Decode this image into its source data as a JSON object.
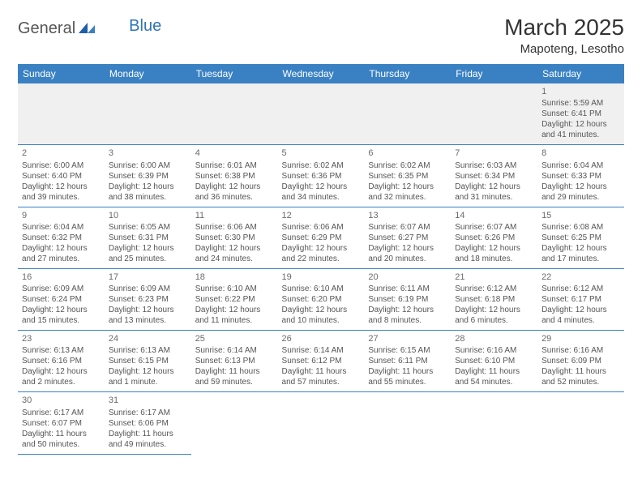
{
  "logo": {
    "general": "General",
    "blue": "Blue"
  },
  "title": "March 2025",
  "location": "Mapoteng, Lesotho",
  "colors": {
    "header_bg": "#3a81c3",
    "header_text": "#ffffff",
    "border": "#3a81c3",
    "text": "#555555",
    "empty_bg": "#f0f0f0",
    "logo_gray": "#555555",
    "logo_blue": "#2f75b5"
  },
  "weekdays": [
    "Sunday",
    "Monday",
    "Tuesday",
    "Wednesday",
    "Thursday",
    "Friday",
    "Saturday"
  ],
  "weeks": [
    [
      null,
      null,
      null,
      null,
      null,
      null,
      {
        "n": "1",
        "sr": "Sunrise: 5:59 AM",
        "ss": "Sunset: 6:41 PM",
        "d1": "Daylight: 12 hours",
        "d2": "and 41 minutes."
      }
    ],
    [
      {
        "n": "2",
        "sr": "Sunrise: 6:00 AM",
        "ss": "Sunset: 6:40 PM",
        "d1": "Daylight: 12 hours",
        "d2": "and 39 minutes."
      },
      {
        "n": "3",
        "sr": "Sunrise: 6:00 AM",
        "ss": "Sunset: 6:39 PM",
        "d1": "Daylight: 12 hours",
        "d2": "and 38 minutes."
      },
      {
        "n": "4",
        "sr": "Sunrise: 6:01 AM",
        "ss": "Sunset: 6:38 PM",
        "d1": "Daylight: 12 hours",
        "d2": "and 36 minutes."
      },
      {
        "n": "5",
        "sr": "Sunrise: 6:02 AM",
        "ss": "Sunset: 6:36 PM",
        "d1": "Daylight: 12 hours",
        "d2": "and 34 minutes."
      },
      {
        "n": "6",
        "sr": "Sunrise: 6:02 AM",
        "ss": "Sunset: 6:35 PM",
        "d1": "Daylight: 12 hours",
        "d2": "and 32 minutes."
      },
      {
        "n": "7",
        "sr": "Sunrise: 6:03 AM",
        "ss": "Sunset: 6:34 PM",
        "d1": "Daylight: 12 hours",
        "d2": "and 31 minutes."
      },
      {
        "n": "8",
        "sr": "Sunrise: 6:04 AM",
        "ss": "Sunset: 6:33 PM",
        "d1": "Daylight: 12 hours",
        "d2": "and 29 minutes."
      }
    ],
    [
      {
        "n": "9",
        "sr": "Sunrise: 6:04 AM",
        "ss": "Sunset: 6:32 PM",
        "d1": "Daylight: 12 hours",
        "d2": "and 27 minutes."
      },
      {
        "n": "10",
        "sr": "Sunrise: 6:05 AM",
        "ss": "Sunset: 6:31 PM",
        "d1": "Daylight: 12 hours",
        "d2": "and 25 minutes."
      },
      {
        "n": "11",
        "sr": "Sunrise: 6:06 AM",
        "ss": "Sunset: 6:30 PM",
        "d1": "Daylight: 12 hours",
        "d2": "and 24 minutes."
      },
      {
        "n": "12",
        "sr": "Sunrise: 6:06 AM",
        "ss": "Sunset: 6:29 PM",
        "d1": "Daylight: 12 hours",
        "d2": "and 22 minutes."
      },
      {
        "n": "13",
        "sr": "Sunrise: 6:07 AM",
        "ss": "Sunset: 6:27 PM",
        "d1": "Daylight: 12 hours",
        "d2": "and 20 minutes."
      },
      {
        "n": "14",
        "sr": "Sunrise: 6:07 AM",
        "ss": "Sunset: 6:26 PM",
        "d1": "Daylight: 12 hours",
        "d2": "and 18 minutes."
      },
      {
        "n": "15",
        "sr": "Sunrise: 6:08 AM",
        "ss": "Sunset: 6:25 PM",
        "d1": "Daylight: 12 hours",
        "d2": "and 17 minutes."
      }
    ],
    [
      {
        "n": "16",
        "sr": "Sunrise: 6:09 AM",
        "ss": "Sunset: 6:24 PM",
        "d1": "Daylight: 12 hours",
        "d2": "and 15 minutes."
      },
      {
        "n": "17",
        "sr": "Sunrise: 6:09 AM",
        "ss": "Sunset: 6:23 PM",
        "d1": "Daylight: 12 hours",
        "d2": "and 13 minutes."
      },
      {
        "n": "18",
        "sr": "Sunrise: 6:10 AM",
        "ss": "Sunset: 6:22 PM",
        "d1": "Daylight: 12 hours",
        "d2": "and 11 minutes."
      },
      {
        "n": "19",
        "sr": "Sunrise: 6:10 AM",
        "ss": "Sunset: 6:20 PM",
        "d1": "Daylight: 12 hours",
        "d2": "and 10 minutes."
      },
      {
        "n": "20",
        "sr": "Sunrise: 6:11 AM",
        "ss": "Sunset: 6:19 PM",
        "d1": "Daylight: 12 hours",
        "d2": "and 8 minutes."
      },
      {
        "n": "21",
        "sr": "Sunrise: 6:12 AM",
        "ss": "Sunset: 6:18 PM",
        "d1": "Daylight: 12 hours",
        "d2": "and 6 minutes."
      },
      {
        "n": "22",
        "sr": "Sunrise: 6:12 AM",
        "ss": "Sunset: 6:17 PM",
        "d1": "Daylight: 12 hours",
        "d2": "and 4 minutes."
      }
    ],
    [
      {
        "n": "23",
        "sr": "Sunrise: 6:13 AM",
        "ss": "Sunset: 6:16 PM",
        "d1": "Daylight: 12 hours",
        "d2": "and 2 minutes."
      },
      {
        "n": "24",
        "sr": "Sunrise: 6:13 AM",
        "ss": "Sunset: 6:15 PM",
        "d1": "Daylight: 12 hours",
        "d2": "and 1 minute."
      },
      {
        "n": "25",
        "sr": "Sunrise: 6:14 AM",
        "ss": "Sunset: 6:13 PM",
        "d1": "Daylight: 11 hours",
        "d2": "and 59 minutes."
      },
      {
        "n": "26",
        "sr": "Sunrise: 6:14 AM",
        "ss": "Sunset: 6:12 PM",
        "d1": "Daylight: 11 hours",
        "d2": "and 57 minutes."
      },
      {
        "n": "27",
        "sr": "Sunrise: 6:15 AM",
        "ss": "Sunset: 6:11 PM",
        "d1": "Daylight: 11 hours",
        "d2": "and 55 minutes."
      },
      {
        "n": "28",
        "sr": "Sunrise: 6:16 AM",
        "ss": "Sunset: 6:10 PM",
        "d1": "Daylight: 11 hours",
        "d2": "and 54 minutes."
      },
      {
        "n": "29",
        "sr": "Sunrise: 6:16 AM",
        "ss": "Sunset: 6:09 PM",
        "d1": "Daylight: 11 hours",
        "d2": "and 52 minutes."
      }
    ],
    [
      {
        "n": "30",
        "sr": "Sunrise: 6:17 AM",
        "ss": "Sunset: 6:07 PM",
        "d1": "Daylight: 11 hours",
        "d2": "and 50 minutes."
      },
      {
        "n": "31",
        "sr": "Sunrise: 6:17 AM",
        "ss": "Sunset: 6:06 PM",
        "d1": "Daylight: 11 hours",
        "d2": "and 49 minutes."
      },
      null,
      null,
      null,
      null,
      null
    ]
  ]
}
